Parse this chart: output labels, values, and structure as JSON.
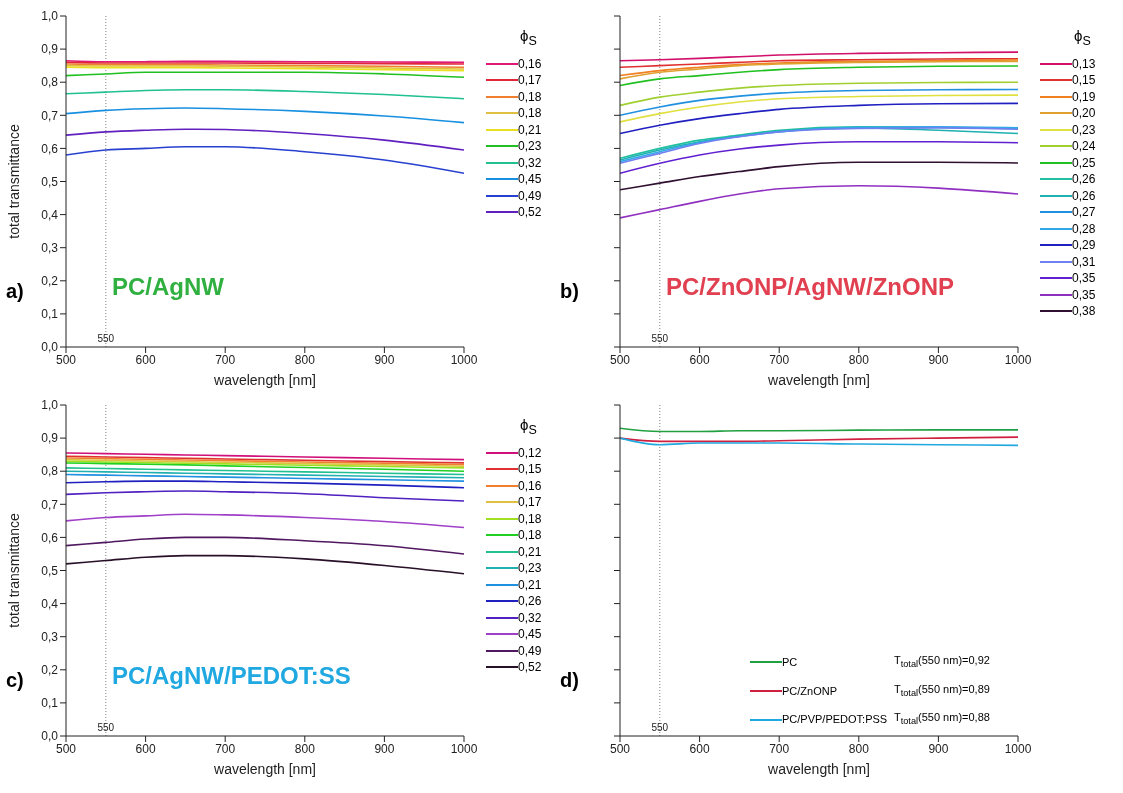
{
  "chart_data": [
    {
      "type": "line",
      "title": "PC/AgNW",
      "xlabel": "wavelength [nm]",
      "ylabel": "total transmittance",
      "legend_title": "ϕ$_{S}$",
      "annotations": [
        "a)"
      ],
      "legend": "right",
      "marker": "none",
      "line_style": "solid",
      "x": [
        500,
        550,
        600,
        650,
        700,
        800,
        900,
        1000
      ],
      "xlim": [
        500,
        1000
      ],
      "xticks": [
        500,
        600,
        700,
        800,
        900,
        1000
      ],
      "ylim": [
        0,
        1
      ],
      "yticks": [
        {
          "value": 0,
          "label": "0,0"
        },
        {
          "value": 0.1,
          "label": "0,1"
        },
        {
          "value": 0.2,
          "label": "0,2"
        },
        {
          "value": 0.3,
          "label": "0,3"
        },
        {
          "value": 0.4,
          "label": "0,4"
        },
        {
          "value": 0.5,
          "label": "0,5"
        },
        {
          "value": 0.6,
          "label": "0,6"
        },
        {
          "value": 0.7,
          "label": "0,7"
        },
        {
          "value": 0.8,
          "label": "0,8"
        },
        {
          "value": 0.9,
          "label": "0,9"
        },
        {
          "value": 1,
          "label": "1,0"
        }
      ],
      "ref_lines": [
        {
          "axis": "x",
          "value": 550,
          "label": "550",
          "color": "#808080",
          "line_style": "dotted"
        }
      ],
      "series": [
        {
          "name": "0,16",
          "color": "#e0187a",
          "values": [
            0.865,
            0.862,
            0.862,
            0.863,
            0.863,
            0.862,
            0.861,
            0.86
          ]
        },
        {
          "name": "0,17",
          "color": "#e02838",
          "values": [
            0.86,
            0.858,
            0.858,
            0.858,
            0.858,
            0.857,
            0.856,
            0.855
          ]
        },
        {
          "name": "0,18",
          "color": "#f08030",
          "values": [
            0.855,
            0.853,
            0.853,
            0.853,
            0.852,
            0.85,
            0.848,
            0.845
          ]
        },
        {
          "name": "0,18",
          "color": "#e0c040",
          "values": [
            0.85,
            0.849,
            0.849,
            0.849,
            0.848,
            0.846,
            0.843,
            0.84
          ]
        },
        {
          "name": "0,21",
          "color": "#e8e020",
          "values": [
            0.845,
            0.844,
            0.844,
            0.844,
            0.843,
            0.841,
            0.838,
            0.835
          ]
        },
        {
          "name": "0,23",
          "color": "#20c020",
          "values": [
            0.82,
            0.825,
            0.83,
            0.83,
            0.83,
            0.83,
            0.825,
            0.815
          ]
        },
        {
          "name": "0,32",
          "color": "#20c090",
          "values": [
            0.765,
            0.77,
            0.775,
            0.777,
            0.777,
            0.772,
            0.763,
            0.75
          ]
        },
        {
          "name": "0,45",
          "color": "#1890e0",
          "values": [
            0.705,
            0.715,
            0.72,
            0.722,
            0.72,
            0.712,
            0.698,
            0.678
          ]
        },
        {
          "name": "0,49",
          "color": "#2840d0",
          "values": [
            0.58,
            0.595,
            0.6,
            0.605,
            0.605,
            0.59,
            0.565,
            0.525
          ]
        },
        {
          "name": "0,52",
          "color": "#6020c0",
          "values": [
            0.64,
            0.65,
            0.655,
            0.658,
            0.657,
            0.645,
            0.625,
            0.595
          ]
        }
      ]
    },
    {
      "type": "line",
      "title": "PC/ZnONP/AgNW/ZnONP",
      "xlabel": "wavelength [nm]",
      "legend_title": "ϕ$_{S}$",
      "annotations": [
        "b)"
      ],
      "legend": "right",
      "marker": "none",
      "line_style": "solid",
      "tick_labels": "x",
      "x": [
        500,
        550,
        600,
        650,
        700,
        800,
        900,
        1000
      ],
      "xlim": [
        500,
        1000
      ],
      "xticks": [
        500,
        600,
        700,
        800,
        900,
        1000
      ],
      "ylim": [
        0,
        1
      ],
      "yticks": [
        {
          "value": 0,
          "label": null
        },
        {
          "value": 0.1,
          "label": null
        },
        {
          "value": 0.2,
          "label": null
        },
        {
          "value": 0.3,
          "label": null
        },
        {
          "value": 0.4,
          "label": null
        },
        {
          "value": 0.5,
          "label": null
        },
        {
          "value": 0.6,
          "label": null
        },
        {
          "value": 0.7,
          "label": null
        },
        {
          "value": 0.8,
          "label": null
        },
        {
          "value": 0.9,
          "label": null
        },
        {
          "value": 1,
          "label": null
        }
      ],
      "ref_lines": [
        {
          "axis": "x",
          "value": 550,
          "label": "550",
          "color": "#808080",
          "line_style": "dotted"
        }
      ],
      "series": [
        {
          "name": "0,13",
          "color": "#d0106a",
          "values": [
            0.865,
            0.868,
            0.872,
            0.877,
            0.882,
            0.887,
            0.889,
            0.891
          ]
        },
        {
          "name": "0,15",
          "color": "#e03030",
          "values": [
            0.845,
            0.85,
            0.855,
            0.86,
            0.865,
            0.868,
            0.87,
            0.871
          ]
        },
        {
          "name": "0,19",
          "color": "#f08020",
          "values": [
            0.82,
            0.835,
            0.845,
            0.853,
            0.858,
            0.863,
            0.865,
            0.867
          ]
        },
        {
          "name": "0,20",
          "color": "#e0a030",
          "values": [
            0.81,
            0.83,
            0.84,
            0.85,
            0.855,
            0.86,
            0.862,
            0.863
          ]
        },
        {
          "name": "0,23",
          "color": "#e0e040",
          "values": [
            0.68,
            0.705,
            0.725,
            0.74,
            0.75,
            0.757,
            0.76,
            0.761
          ]
        },
        {
          "name": "0,24",
          "color": "#a0d030",
          "values": [
            0.73,
            0.755,
            0.77,
            0.782,
            0.79,
            0.797,
            0.799,
            0.8
          ]
        },
        {
          "name": "0,25",
          "color": "#20c020",
          "values": [
            0.79,
            0.81,
            0.82,
            0.83,
            0.838,
            0.845,
            0.848,
            0.849
          ]
        },
        {
          "name": "0,26",
          "color": "#20c0a0",
          "values": [
            0.57,
            0.6,
            0.625,
            0.64,
            0.655,
            0.665,
            0.664,
            0.66
          ]
        },
        {
          "name": "0,26",
          "color": "#20b0b0",
          "values": [
            0.565,
            0.595,
            0.62,
            0.638,
            0.652,
            0.662,
            0.655,
            0.645
          ]
        },
        {
          "name": "0,27",
          "color": "#2090e0",
          "values": [
            0.7,
            0.725,
            0.745,
            0.758,
            0.767,
            0.775,
            0.777,
            0.778
          ]
        },
        {
          "name": "0,28",
          "color": "#30a8e8",
          "values": [
            0.56,
            0.59,
            0.618,
            0.636,
            0.65,
            0.664,
            0.665,
            0.662
          ]
        },
        {
          "name": "0,29",
          "color": "#2020c0",
          "values": [
            0.645,
            0.67,
            0.69,
            0.705,
            0.718,
            0.73,
            0.735,
            0.736
          ]
        },
        {
          "name": "0,31",
          "color": "#7080f0",
          "values": [
            0.555,
            0.585,
            0.615,
            0.635,
            0.65,
            0.66,
            0.662,
            0.658
          ]
        },
        {
          "name": "0,35",
          "color": "#6020d0",
          "values": [
            0.525,
            0.555,
            0.58,
            0.598,
            0.61,
            0.62,
            0.62,
            0.617
          ]
        },
        {
          "name": "0,35",
          "color": "#9030c0",
          "values": [
            0.39,
            0.415,
            0.44,
            0.462,
            0.478,
            0.487,
            0.48,
            0.462
          ]
        },
        {
          "name": "0,38",
          "color": "#301030",
          "values": [
            0.475,
            0.495,
            0.515,
            0.53,
            0.545,
            0.558,
            0.558,
            0.556
          ]
        }
      ]
    },
    {
      "type": "line",
      "title": "PC/AgNW/PEDOT:SS",
      "xlabel": "wavelength [nm]",
      "ylabel": "total transmittance",
      "legend_title": "ϕ$_{S}$",
      "annotations": [
        "c)"
      ],
      "legend": "right",
      "marker": "none",
      "line_style": "solid",
      "x": [
        500,
        550,
        600,
        650,
        700,
        800,
        900,
        1000
      ],
      "xlim": [
        500,
        1000
      ],
      "xticks": [
        500,
        600,
        700,
        800,
        900,
        1000
      ],
      "ylim": [
        0,
        1
      ],
      "yticks": [
        {
          "value": 0,
          "label": "0,0"
        },
        {
          "value": 0.1,
          "label": "0,1"
        },
        {
          "value": 0.2,
          "label": "0,2"
        },
        {
          "value": 0.3,
          "label": "0,3"
        },
        {
          "value": 0.4,
          "label": "0,4"
        },
        {
          "value": 0.5,
          "label": "0,5"
        },
        {
          "value": 0.6,
          "label": "0,6"
        },
        {
          "value": 0.7,
          "label": "0,7"
        },
        {
          "value": 0.8,
          "label": "0,8"
        },
        {
          "value": 0.9,
          "label": "0,9"
        },
        {
          "value": 1,
          "label": "1,0"
        }
      ],
      "ref_lines": [
        {
          "axis": "x",
          "value": 550,
          "label": "550",
          "color": "#808080",
          "line_style": "dotted"
        }
      ],
      "series": [
        {
          "name": "0,12",
          "color": "#d0107a",
          "values": [
            0.855,
            0.853,
            0.851,
            0.849,
            0.847,
            0.843,
            0.839,
            0.835
          ]
        },
        {
          "name": "0,15",
          "color": "#e03030",
          "values": [
            0.845,
            0.843,
            0.841,
            0.839,
            0.837,
            0.833,
            0.829,
            0.825
          ]
        },
        {
          "name": "0,16",
          "color": "#f08030",
          "values": [
            0.84,
            0.838,
            0.836,
            0.834,
            0.832,
            0.828,
            0.824,
            0.82
          ]
        },
        {
          "name": "0,17",
          "color": "#e0c040",
          "values": [
            0.835,
            0.833,
            0.831,
            0.829,
            0.827,
            0.823,
            0.819,
            0.815
          ]
        },
        {
          "name": "0,18",
          "color": "#a0e020",
          "values": [
            0.83,
            0.828,
            0.826,
            0.824,
            0.822,
            0.818,
            0.814,
            0.81
          ]
        },
        {
          "name": "0,18",
          "color": "#20d020",
          "values": [
            0.825,
            0.823,
            0.821,
            0.819,
            0.816,
            0.811,
            0.806,
            0.8
          ]
        },
        {
          "name": "0,21",
          "color": "#20c090",
          "values": [
            0.81,
            0.808,
            0.806,
            0.804,
            0.802,
            0.798,
            0.794,
            0.79
          ]
        },
        {
          "name": "0,23",
          "color": "#20b0b0",
          "values": [
            0.8,
            0.798,
            0.796,
            0.794,
            0.792,
            0.788,
            0.784,
            0.78
          ]
        },
        {
          "name": "0,21",
          "color": "#2090e0",
          "values": [
            0.79,
            0.788,
            0.786,
            0.784,
            0.782,
            0.778,
            0.774,
            0.77
          ]
        },
        {
          "name": "0,26",
          "color": "#2020c0",
          "values": [
            0.765,
            0.768,
            0.77,
            0.77,
            0.768,
            0.764,
            0.758,
            0.75
          ]
        },
        {
          "name": "0,32",
          "color": "#5020c0",
          "values": [
            0.73,
            0.735,
            0.738,
            0.74,
            0.738,
            0.732,
            0.72,
            0.71
          ]
        },
        {
          "name": "0,45",
          "color": "#a040c8",
          "values": [
            0.65,
            0.66,
            0.665,
            0.67,
            0.668,
            0.66,
            0.648,
            0.63
          ]
        },
        {
          "name": "0,49",
          "color": "#501860",
          "values": [
            0.575,
            0.585,
            0.595,
            0.6,
            0.6,
            0.59,
            0.575,
            0.55
          ]
        },
        {
          "name": "0,52",
          "color": "#281028",
          "values": [
            0.52,
            0.53,
            0.54,
            0.545,
            0.545,
            0.535,
            0.515,
            0.49
          ]
        }
      ]
    },
    {
      "type": "line",
      "xlabel": "wavelength [nm]",
      "annotations": [
        "d)",
        "T$_{total}$(550 nm)=0,92",
        "T$_{total}$(550 nm)=0,89",
        "T$_{total}$(550 nm)=0,88"
      ],
      "legend": "bottom right",
      "marker": "none",
      "line_style": "solid",
      "tick_labels": "x",
      "x": [
        500,
        550,
        600,
        650,
        700,
        800,
        900,
        1000
      ],
      "xlim": [
        500,
        1000
      ],
      "xticks": [
        500,
        600,
        700,
        800,
        900,
        1000
      ],
      "ylim": [
        0,
        1
      ],
      "yticks": [
        {
          "value": 0,
          "label": null
        },
        {
          "value": 0.1,
          "label": null
        },
        {
          "value": 0.2,
          "label": null
        },
        {
          "value": 0.3,
          "label": null
        },
        {
          "value": 0.4,
          "label": null
        },
        {
          "value": 0.5,
          "label": null
        },
        {
          "value": 0.6,
          "label": null
        },
        {
          "value": 0.7,
          "label": null
        },
        {
          "value": 0.8,
          "label": null
        },
        {
          "value": 0.9,
          "label": null
        },
        {
          "value": 1,
          "label": null
        }
      ],
      "ref_lines": [
        {
          "axis": "x",
          "value": 550,
          "label": "550",
          "color": "#808080",
          "line_style": "dotted"
        }
      ],
      "series": [
        {
          "name": "PC",
          "color": "#20a040",
          "values": [
            0.93,
            0.92,
            0.92,
            0.922,
            0.922,
            0.924,
            0.925,
            0.925
          ]
        },
        {
          "name": "PC/ZnONP",
          "color": "#d02040",
          "values": [
            0.9,
            0.89,
            0.89,
            0.89,
            0.892,
            0.897,
            0.9,
            0.903
          ]
        },
        {
          "name": "PC/PVP/PEDOT:PSS",
          "color": "#20a8e0",
          "values": [
            0.9,
            0.88,
            0.885,
            0.885,
            0.885,
            0.882,
            0.88,
            0.878
          ]
        }
      ]
    }
  ]
}
